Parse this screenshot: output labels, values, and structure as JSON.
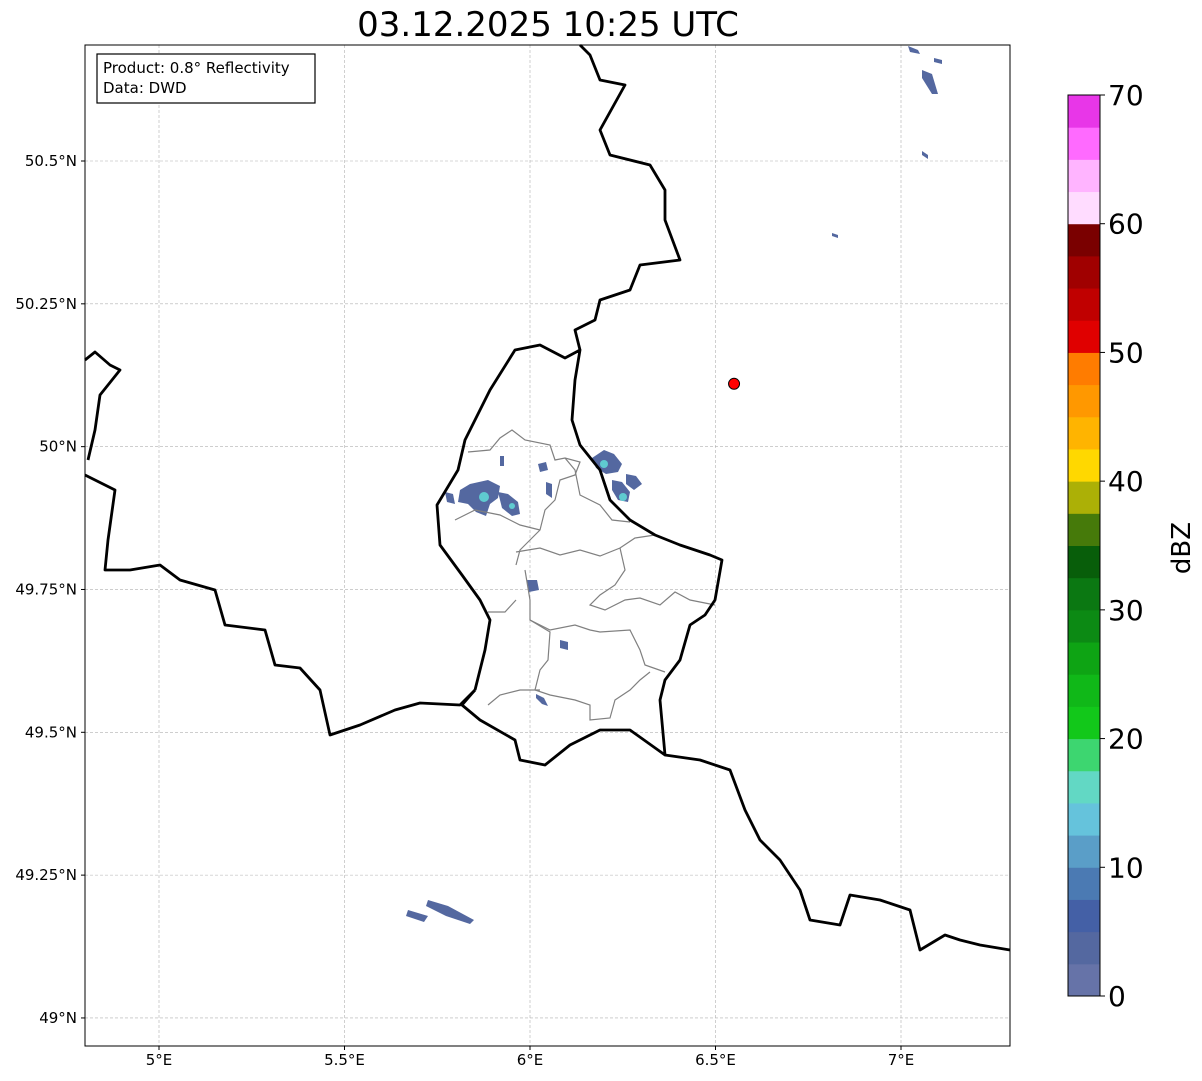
{
  "title": "03.12.2025 10:25 UTC",
  "info_box": {
    "product": "Product: 0.8° Reflectivity",
    "data": "Data: DWD"
  },
  "axes": {
    "lon_ticks": [
      {
        "value": 5,
        "label": "5°E"
      },
      {
        "value": 5.5,
        "label": "5.5°E"
      },
      {
        "value": 6,
        "label": "6°E"
      },
      {
        "value": 6.5,
        "label": "6.5°E"
      },
      {
        "value": 7,
        "label": "7°E"
      }
    ],
    "lat_ticks": [
      {
        "value": 49,
        "label": "49°N"
      },
      {
        "value": 49.25,
        "label": "49.25°N"
      },
      {
        "value": 49.5,
        "label": "49.5°N"
      },
      {
        "value": 49.75,
        "label": "49.75°N"
      },
      {
        "value": 50,
        "label": "50°N"
      },
      {
        "value": 50.25,
        "label": "50.25°N"
      },
      {
        "value": 50.5,
        "label": "50.5°N"
      }
    ],
    "lon_range": [
      4.8,
      7.3
    ],
    "lat_range": [
      48.95,
      50.7
    ]
  },
  "marker": {
    "lon": 6.55,
    "lat": 50.11,
    "color": "#ff0000"
  },
  "colorbar": {
    "label": "dBZ",
    "range": [
      0,
      70
    ],
    "ticks": [
      {
        "value": 0,
        "label": "0"
      },
      {
        "value": 10,
        "label": "10"
      },
      {
        "value": 20,
        "label": "20"
      },
      {
        "value": 30,
        "label": "30"
      },
      {
        "value": 40,
        "label": "40"
      },
      {
        "value": 50,
        "label": "50"
      },
      {
        "value": 60,
        "label": "60"
      },
      {
        "value": 70,
        "label": "70"
      }
    ],
    "step": 2.5,
    "colors": [
      "#6673a8",
      "#5468a0",
      "#4460a6",
      "#4b7ab3",
      "#5a9ec8",
      "#65c3dc",
      "#62d8c4",
      "#3dd670",
      "#12c81a",
      "#10b818",
      "#0ea414",
      "#0c8a14",
      "#0b7812",
      "#085e0a",
      "#467a0a",
      "#acb006",
      "#ffd800",
      "#ffb400",
      "#ff9800",
      "#ff7c00",
      "#e00000",
      "#c00000",
      "#a00000",
      "#7a0000",
      "#ffdcff",
      "#ffb4ff",
      "#ff6aff",
      "#e836e8"
    ]
  }
}
